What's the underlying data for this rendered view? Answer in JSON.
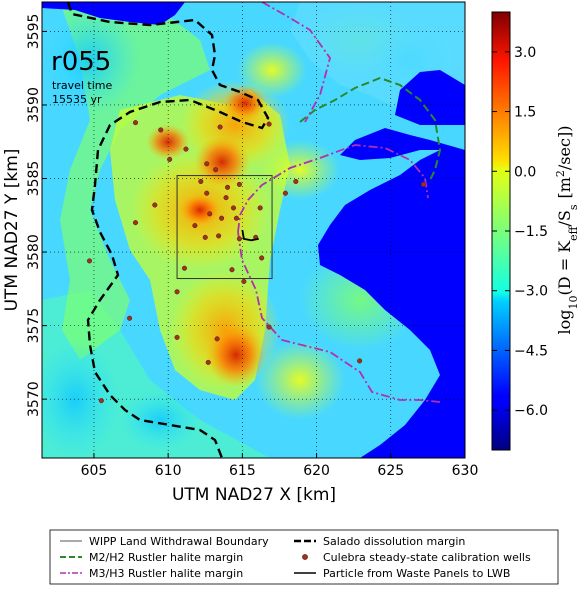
{
  "chart_data": {
    "type": "heatmap",
    "run_label": "r055",
    "travel_time_label": "travel time",
    "travel_time_value": "15535 yr",
    "xlabel": "UTM NAD27 X [km]",
    "ylabel": "UTM NAD27 Y [km]",
    "xlim": [
      601.5,
      630
    ],
    "ylim": [
      3566,
      3597
    ],
    "x_ticks": [
      605,
      610,
      615,
      620,
      625,
      630
    ],
    "y_ticks": [
      3570,
      3575,
      3580,
      3585,
      3590,
      3595
    ],
    "grid": true,
    "colorbar": {
      "label": "log10(D = Keff / Ss [m^2/sec])",
      "label_parts": {
        "pre": "log",
        "sub10": "10",
        "mid": "(D = K",
        "subeff": "eff",
        "slash": "/S",
        "subs": "s",
        "unit": "[m",
        "sup": "2",
        "unit_end": "/sec])"
      },
      "range": [
        -7.0,
        4.0
      ],
      "ticks": [
        -6.0,
        -4.5,
        -3.0,
        -1.5,
        0.0,
        1.5,
        3.0
      ],
      "tick_labels": [
        "−6.0",
        "−4.5",
        "−3.0",
        "−1.5",
        "0.0",
        "1.5",
        "3.0"
      ],
      "colormap": "jet"
    },
    "land_withdrawal_boundary": {
      "x": [
        610.6,
        617.0
      ],
      "y": [
        3578.2,
        3585.2
      ]
    },
    "particle_path": [
      [
        615.0,
        3581.5
      ],
      [
        615.1,
        3580.9
      ],
      [
        615.6,
        3580.8
      ],
      [
        616.1,
        3580.9
      ]
    ],
    "calibration_wells": [
      [
        607.8,
        3588.8
      ],
      [
        609.5,
        3588.3
      ],
      [
        611.2,
        3587.0
      ],
      [
        613.5,
        3588.5
      ],
      [
        616.8,
        3588.7
      ],
      [
        610.1,
        3586.3
      ],
      [
        612.6,
        3586.0
      ],
      [
        613.2,
        3585.6
      ],
      [
        614.0,
        3584.4
      ],
      [
        614.8,
        3584.6
      ],
      [
        612.2,
        3584.8
      ],
      [
        612.6,
        3584.0
      ],
      [
        613.9,
        3583.7
      ],
      [
        614.4,
        3583.0
      ],
      [
        612.8,
        3582.6
      ],
      [
        613.6,
        3582.3
      ],
      [
        614.6,
        3582.3
      ],
      [
        611.8,
        3581.8
      ],
      [
        612.5,
        3581.0
      ],
      [
        613.4,
        3581.1
      ],
      [
        614.8,
        3580.9
      ],
      [
        615.9,
        3581.0
      ],
      [
        616.2,
        3583.0
      ],
      [
        617.9,
        3584.0
      ],
      [
        618.6,
        3584.8
      ],
      [
        609.1,
        3583.2
      ],
      [
        607.8,
        3582.0
      ],
      [
        604.7,
        3579.4
      ],
      [
        611.1,
        3578.9
      ],
      [
        614.3,
        3578.8
      ],
      [
        615.1,
        3578.0
      ],
      [
        616.3,
        3579.6
      ],
      [
        610.6,
        3577.3
      ],
      [
        616.8,
        3574.9
      ],
      [
        612.7,
        3572.5
      ],
      [
        613.3,
        3574.1
      ],
      [
        607.4,
        3575.5
      ],
      [
        605.5,
        3569.9
      ],
      [
        622.9,
        3572.6
      ],
      [
        627.2,
        3584.6
      ],
      [
        610.6,
        3574.2
      ]
    ]
  },
  "legend": {
    "items": [
      {
        "label": "WIPP Land Withdrawal Boundary",
        "color": "#555555",
        "style": "solid-thin"
      },
      {
        "label": "M2/H2 Rustler halite margin",
        "color": "#2a8a2a",
        "style": "dashed"
      },
      {
        "label": "M3/H3 Rustler halite margin",
        "color": "#b030b0",
        "style": "dashdot"
      },
      {
        "label": "Salado dissolution margin",
        "color": "#000000",
        "style": "dashed-thick"
      },
      {
        "label": "Culebra steady-state calibration wells",
        "color": "#a03020",
        "style": "dot"
      },
      {
        "label": "Particle from Waste Panels to LWB",
        "color": "#000000",
        "style": "solid"
      }
    ]
  }
}
